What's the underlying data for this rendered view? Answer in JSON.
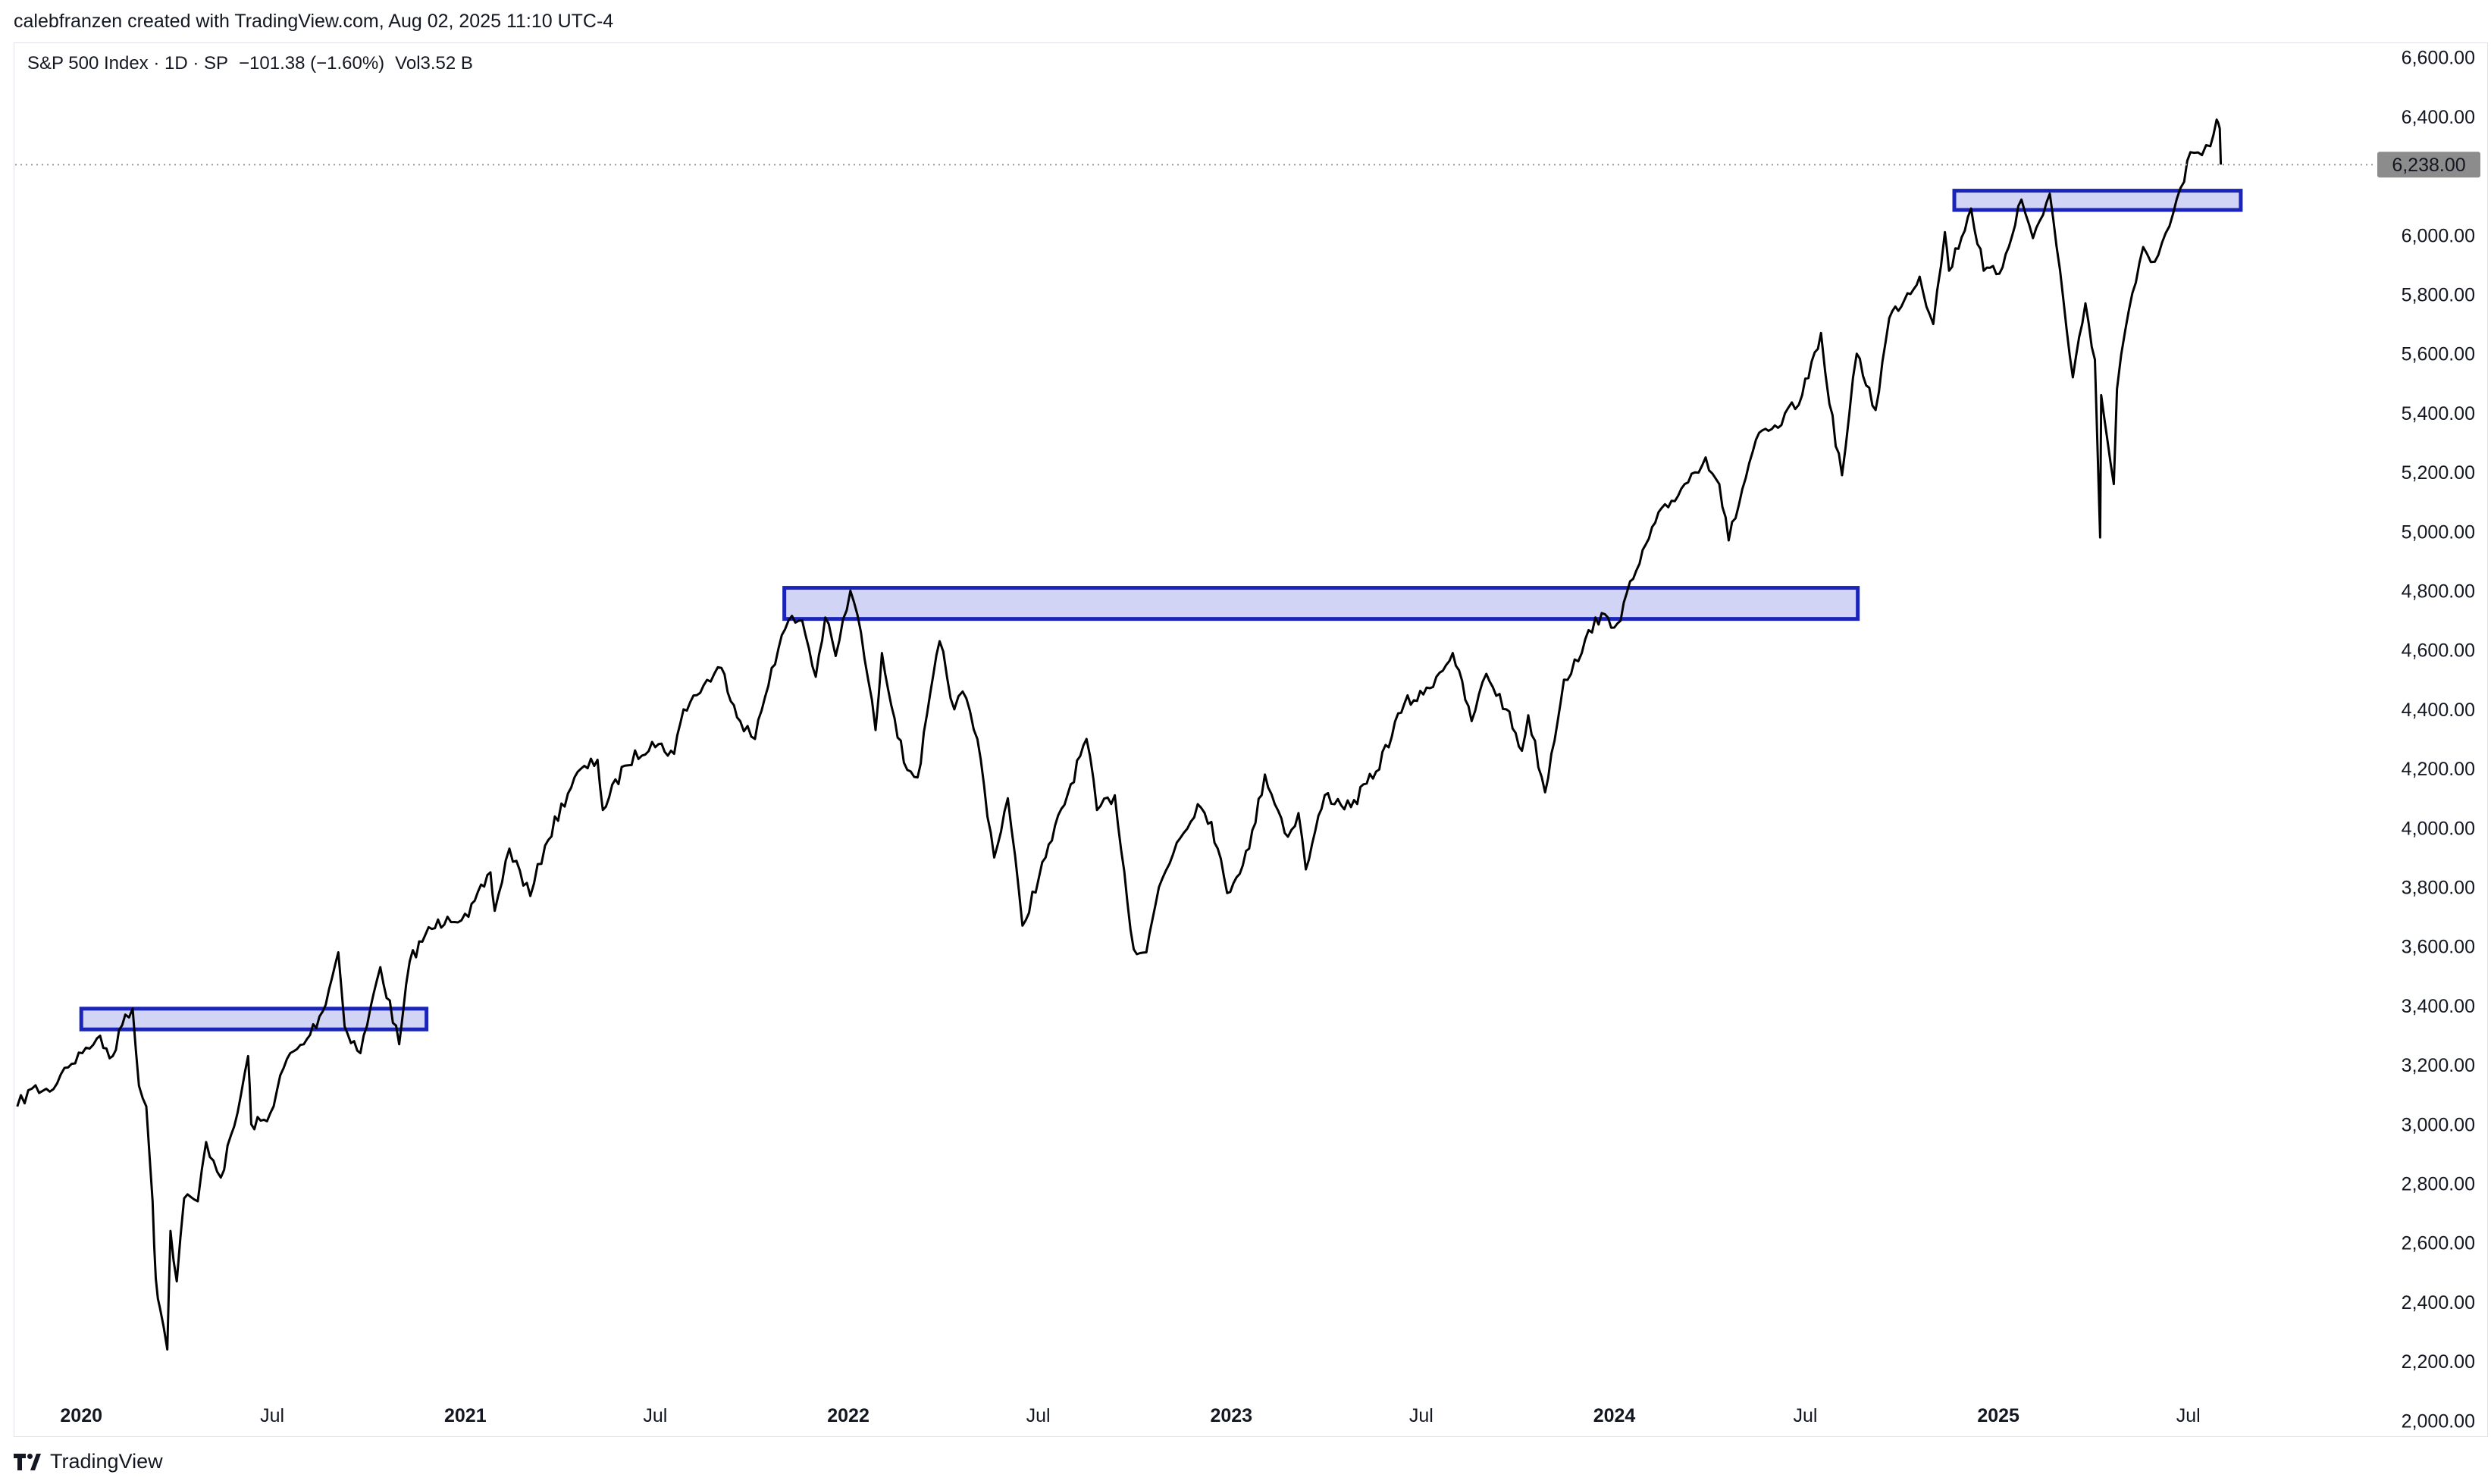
{
  "credit": "calebfranzen created with TradingView.com, Aug 02, 2025 11:10 UTC-4",
  "legend": {
    "symbol": "S&P 500 Index · 1D · SP",
    "change": "−101.38 (−1.60%)",
    "volume": "Vol3.52 B"
  },
  "brand": "TradingView",
  "brand_icon": "tradingview-logo-icon",
  "colors": {
    "line": "#000000",
    "zone_fill": "#d1d4f5",
    "zone_stroke": "#1a24b8",
    "price_tag": "#8c8c8c"
  },
  "chart_data": {
    "type": "line",
    "title": "",
    "xlabel": "",
    "ylabel": "",
    "ylim": [
      1960,
      6640
    ],
    "xlim": [
      "2019-10-30",
      "2025-12-31"
    ],
    "y_ticks": [
      2000,
      2200,
      2400,
      2600,
      2800,
      3000,
      3200,
      3400,
      3600,
      3800,
      4000,
      4200,
      4400,
      4600,
      4800,
      5000,
      5200,
      5400,
      5600,
      5800,
      6000,
      6200,
      6400,
      6600
    ],
    "y_tick_labels": [
      "2,000.00",
      "2,200.00",
      "2,400.00",
      "2,600.00",
      "2,800.00",
      "3,000.00",
      "3,200.00",
      "3,400.00",
      "3,600.00",
      "3,800.00",
      "4,000.00",
      "4,200.00",
      "4,400.00",
      "4,600.00",
      "4,800.00",
      "5,000.00",
      "5,200.00",
      "5,400.00",
      "5,600.00",
      "5,800.00",
      "6,000.00",
      "6,200.00",
      "6,400.00",
      "6,600.00"
    ],
    "x_ticks": [
      {
        "date": "2020-01-01",
        "label": "2020",
        "year": true
      },
      {
        "date": "2020-07-01",
        "label": "Jul",
        "year": false
      },
      {
        "date": "2021-01-01",
        "label": "2021",
        "year": true
      },
      {
        "date": "2021-07-01",
        "label": "Jul",
        "year": false
      },
      {
        "date": "2022-01-01",
        "label": "2022",
        "year": true
      },
      {
        "date": "2022-07-01",
        "label": "Jul",
        "year": false
      },
      {
        "date": "2023-01-01",
        "label": "2023",
        "year": true
      },
      {
        "date": "2023-07-01",
        "label": "Jul",
        "year": false
      },
      {
        "date": "2024-01-01",
        "label": "2024",
        "year": true
      },
      {
        "date": "2024-07-01",
        "label": "Jul",
        "year": false
      },
      {
        "date": "2025-01-01",
        "label": "2025",
        "year": true
      },
      {
        "date": "2025-07-01",
        "label": "Jul",
        "year": false
      }
    ],
    "last_price": 6238,
    "last_price_label": "6,238.00",
    "series": [
      {
        "x": [
          "2019-11-01",
          "2019-11-15",
          "2019-12-02",
          "2019-12-16",
          "2020-01-02",
          "2020-01-16",
          "2020-01-31",
          "2020-02-12",
          "2020-02-19",
          "2020-02-25",
          "2020-03-03",
          "2020-03-09",
          "2020-03-12",
          "2020-03-16",
          "2020-03-23",
          "2020-03-26",
          "2020-04-01",
          "2020-04-08",
          "2020-04-21",
          "2020-04-29",
          "2020-05-13",
          "2020-05-29",
          "2020-06-08",
          "2020-06-11",
          "2020-06-26",
          "2020-07-15",
          "2020-07-31",
          "2020-08-18",
          "2020-09-02",
          "2020-09-08",
          "2020-09-23",
          "2020-10-12",
          "2020-10-30",
          "2020-11-09",
          "2020-11-24",
          "2020-12-15",
          "2021-01-04",
          "2021-01-25",
          "2021-01-29",
          "2021-02-12",
          "2021-03-04",
          "2021-03-18",
          "2021-04-15",
          "2021-05-07",
          "2021-05-12",
          "2021-06-02",
          "2021-06-28",
          "2021-07-19",
          "2021-07-28",
          "2021-08-16",
          "2021-09-02",
          "2021-09-20",
          "2021-10-04",
          "2021-10-20",
          "2021-11-05",
          "2021-11-18",
          "2021-12-01",
          "2021-12-10",
          "2021-12-20",
          "2022-01-03",
          "2022-01-13",
          "2022-01-27",
          "2022-02-02",
          "2022-02-23",
          "2022-03-08",
          "2022-03-29",
          "2022-04-12",
          "2022-04-20",
          "2022-05-04",
          "2022-05-20",
          "2022-06-02",
          "2022-06-16",
          "2022-07-08",
          "2022-08-16",
          "2022-08-26",
          "2022-09-12",
          "2022-09-30",
          "2022-10-12",
          "2022-10-24",
          "2022-11-10",
          "2022-11-30",
          "2022-12-13",
          "2022-12-28",
          "2023-01-18",
          "2023-02-02",
          "2023-02-24",
          "2023-03-06",
          "2023-03-13",
          "2023-03-31",
          "2023-04-25",
          "2023-05-19",
          "2023-06-15",
          "2023-07-03",
          "2023-07-31",
          "2023-08-18",
          "2023-09-01",
          "2023-09-20",
          "2023-10-05",
          "2023-10-11",
          "2023-10-27",
          "2023-11-14",
          "2023-12-01",
          "2023-12-14",
          "2024-01-04",
          "2024-01-19",
          "2024-02-09",
          "2024-03-08",
          "2024-03-28",
          "2024-04-10",
          "2024-04-19",
          "2024-05-15",
          "2024-06-05",
          "2024-06-28",
          "2024-07-16",
          "2024-07-24",
          "2024-08-05",
          "2024-08-19",
          "2024-09-06",
          "2024-09-19",
          "2024-10-18",
          "2024-10-31",
          "2024-11-11",
          "2024-11-15",
          "2024-12-06",
          "2024-12-18",
          "2025-01-02",
          "2025-01-23",
          "2025-02-03",
          "2025-02-19",
          "2025-03-04",
          "2025-03-13",
          "2025-03-25",
          "2025-04-03",
          "2025-04-08",
          "2025-04-09",
          "2025-04-21",
          "2025-04-24",
          "2025-05-02",
          "2025-05-12",
          "2025-05-19",
          "2025-05-30",
          "2025-06-13",
          "2025-06-27",
          "2025-07-03",
          "2025-07-14",
          "2025-07-22",
          "2025-07-28",
          "2025-07-31",
          "2025-08-01"
        ],
        "values": [
          3060,
          3120,
          3110,
          3190,
          3240,
          3290,
          3230,
          3370,
          3390,
          3130,
          3060,
          2740,
          2480,
          2380,
          2240,
          2640,
          2470,
          2750,
          2740,
          2940,
          2820,
          3040,
          3230,
          3000,
          3010,
          3220,
          3270,
          3380,
          3580,
          3330,
          3240,
          3530,
          3270,
          3550,
          3640,
          3700,
          3700,
          3850,
          3720,
          3930,
          3770,
          3940,
          4170,
          4230,
          4060,
          4210,
          4290,
          4250,
          4400,
          4480,
          4540,
          4360,
          4300,
          4540,
          4700,
          4700,
          4510,
          4710,
          4580,
          4800,
          4660,
          4330,
          4590,
          4220,
          4170,
          4630,
          4400,
          4460,
          4300,
          3900,
          4100,
          3670,
          3900,
          4300,
          4060,
          4110,
          3590,
          3580,
          3800,
          3950,
          4080,
          4020,
          3780,
          3930,
          4180,
          3970,
          4050,
          3860,
          4110,
          4070,
          4190,
          4420,
          4450,
          4590,
          4360,
          4520,
          4400,
          4260,
          4380,
          4120,
          4500,
          4590,
          4710,
          4690,
          4840,
          5030,
          5160,
          5250,
          5160,
          4970,
          5310,
          5350,
          5460,
          5670,
          5430,
          5190,
          5600,
          5410,
          5720,
          5860,
          5700,
          6010,
          5880,
          6090,
          5880,
          5870,
          6120,
          5990,
          6140,
          5780,
          5520,
          5770,
          5580,
          4980,
          5460,
          5160,
          5480,
          5680,
          5840,
          5960,
          5910,
          6030,
          6180,
          6280,
          6270,
          6300,
          6390,
          6360,
          6238
        ]
      }
    ],
    "zones": [
      {
        "x0": "2020-01-01",
        "x1": "2020-11-25",
        "y0": 3320,
        "y1": 3390
      },
      {
        "x0": "2021-11-01",
        "x1": "2024-08-20",
        "y0": 4705,
        "y1": 4810
      },
      {
        "x0": "2024-11-20",
        "x1": "2025-08-20",
        "y0": 6085,
        "y1": 6150
      }
    ]
  }
}
